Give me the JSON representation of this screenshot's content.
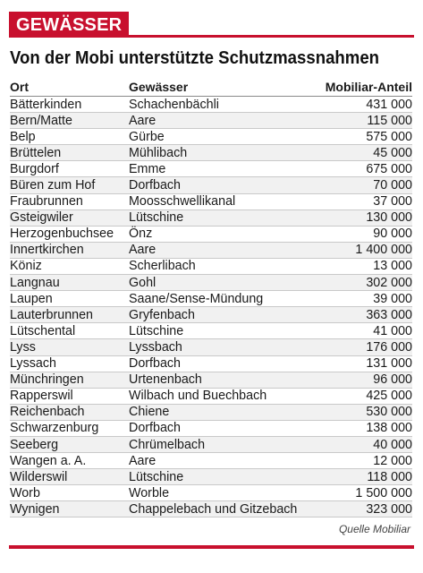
{
  "tag": "GEWÄSSER",
  "title": "Von der Mobi unterstützte Schutzmassnahmen",
  "columns": [
    "Ort",
    "Gewässer",
    "Mobiliar-Anteil"
  ],
  "rows": [
    [
      "Bätterkinden",
      "Schachenbächli",
      "431 000"
    ],
    [
      "Bern/Matte",
      "Aare",
      "115 000"
    ],
    [
      "Belp",
      "Gürbe",
      "575 000"
    ],
    [
      "Brüttelen",
      "Mühlibach",
      "45 000"
    ],
    [
      "Burgdorf",
      "Emme",
      "675 000"
    ],
    [
      "Büren zum Hof",
      "Dorfbach",
      "70 000"
    ],
    [
      "Fraubrunnen",
      "Moosschwellikanal",
      "37 000"
    ],
    [
      "Gsteigwiler",
      "Lütschine",
      "130 000"
    ],
    [
      "Herzogenbuchsee",
      "Önz",
      "90 000"
    ],
    [
      "Innertkirchen",
      "Aare",
      "1 400 000"
    ],
    [
      "Köniz",
      "Scherlibach",
      "13 000"
    ],
    [
      "Langnau",
      "Gohl",
      "302 000"
    ],
    [
      "Laupen",
      "Saane/Sense-Mündung",
      "39 000"
    ],
    [
      "Lauterbrunnen",
      "Gryfenbach",
      "363 000"
    ],
    [
      "Lütschental",
      "Lütschine",
      "41 000"
    ],
    [
      "Lyss",
      "Lyssbach",
      "176 000"
    ],
    [
      "Lyssach",
      "Dorfbach",
      "131 000"
    ],
    [
      "Münchringen",
      "Urtenenbach",
      "96 000"
    ],
    [
      "Rapperswil",
      "Wilbach und Buechbach",
      "425 000"
    ],
    [
      "Reichenbach",
      "Chiene",
      "530 000"
    ],
    [
      "Schwarzenburg",
      "Dorfbach",
      "138 000"
    ],
    [
      "Seeberg",
      "Chrümelbach",
      "40 000"
    ],
    [
      "Wangen a. A.",
      "Aare",
      "12 000"
    ],
    [
      "Wilderswil",
      "Lütschine",
      "118 000"
    ],
    [
      "Worb",
      "Worble",
      "1 500 000"
    ],
    [
      "Wynigen",
      "Chappelebach und Gitzebach",
      "323 000"
    ]
  ],
  "source": "Quelle Mobiliar",
  "colors": {
    "accent": "#c8102e",
    "stripe": "#f1f1f1"
  }
}
